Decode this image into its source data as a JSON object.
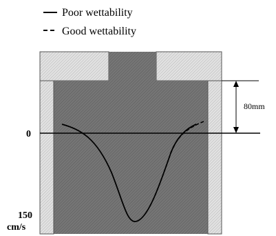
{
  "legend": {
    "solid_label": "Poor wettability",
    "dashed_label": "Good wettability"
  },
  "dimension": {
    "label": "80mm"
  },
  "axis": {
    "zero_label": "0",
    "max_value_label": "150",
    "unit_label": "cm/s"
  },
  "colors": {
    "wall_fill": "#d9d9d9",
    "fluid_fill": "#6e6e6e",
    "line": "#000000"
  }
}
